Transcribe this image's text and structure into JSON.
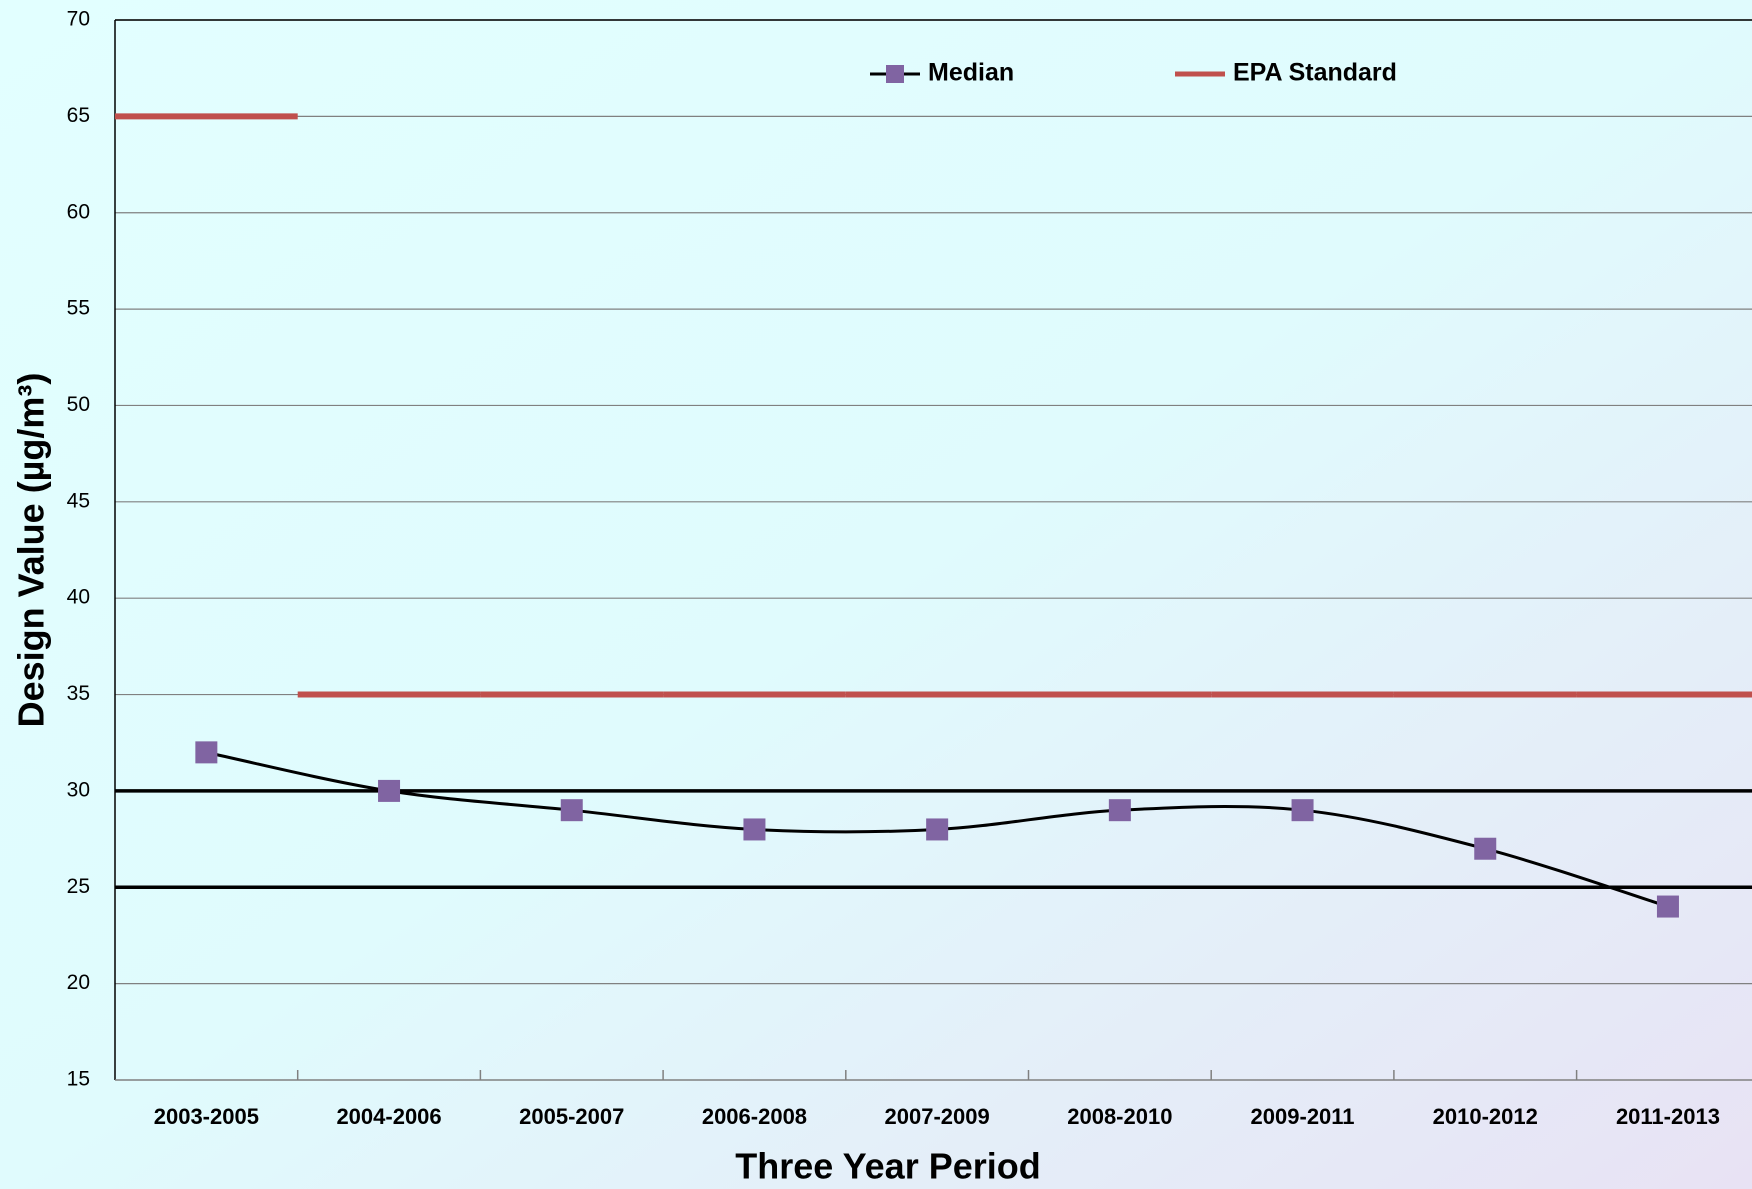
{
  "chart_data": {
    "type": "line",
    "x_label": "Three Year Period",
    "y_label": "Design Value (µg/m³)",
    "categories": [
      "2003-2005",
      "2004-2006",
      "2005-2007",
      "2006-2008",
      "2007-2009",
      "2008-2010",
      "2009-2011",
      "2010-2012",
      "2011-2013"
    ],
    "series": [
      {
        "name": "Median",
        "color": "#8064a2",
        "line_color": "#000000",
        "smooth": true,
        "values": [
          32,
          30,
          29,
          28,
          28,
          29,
          29,
          27,
          24
        ]
      },
      {
        "name": "EPA Standard",
        "color": "#c0504d",
        "step": true,
        "values": [
          65,
          35,
          35,
          35,
          35,
          35,
          35,
          35,
          35
        ]
      }
    ],
    "reference_lines": [
      25,
      30
    ],
    "ylim": [
      15,
      70
    ],
    "yticks": [
      15,
      20,
      25,
      30,
      35,
      40,
      45,
      50,
      55,
      60,
      65,
      70
    ],
    "grid": true,
    "legend": "top"
  }
}
